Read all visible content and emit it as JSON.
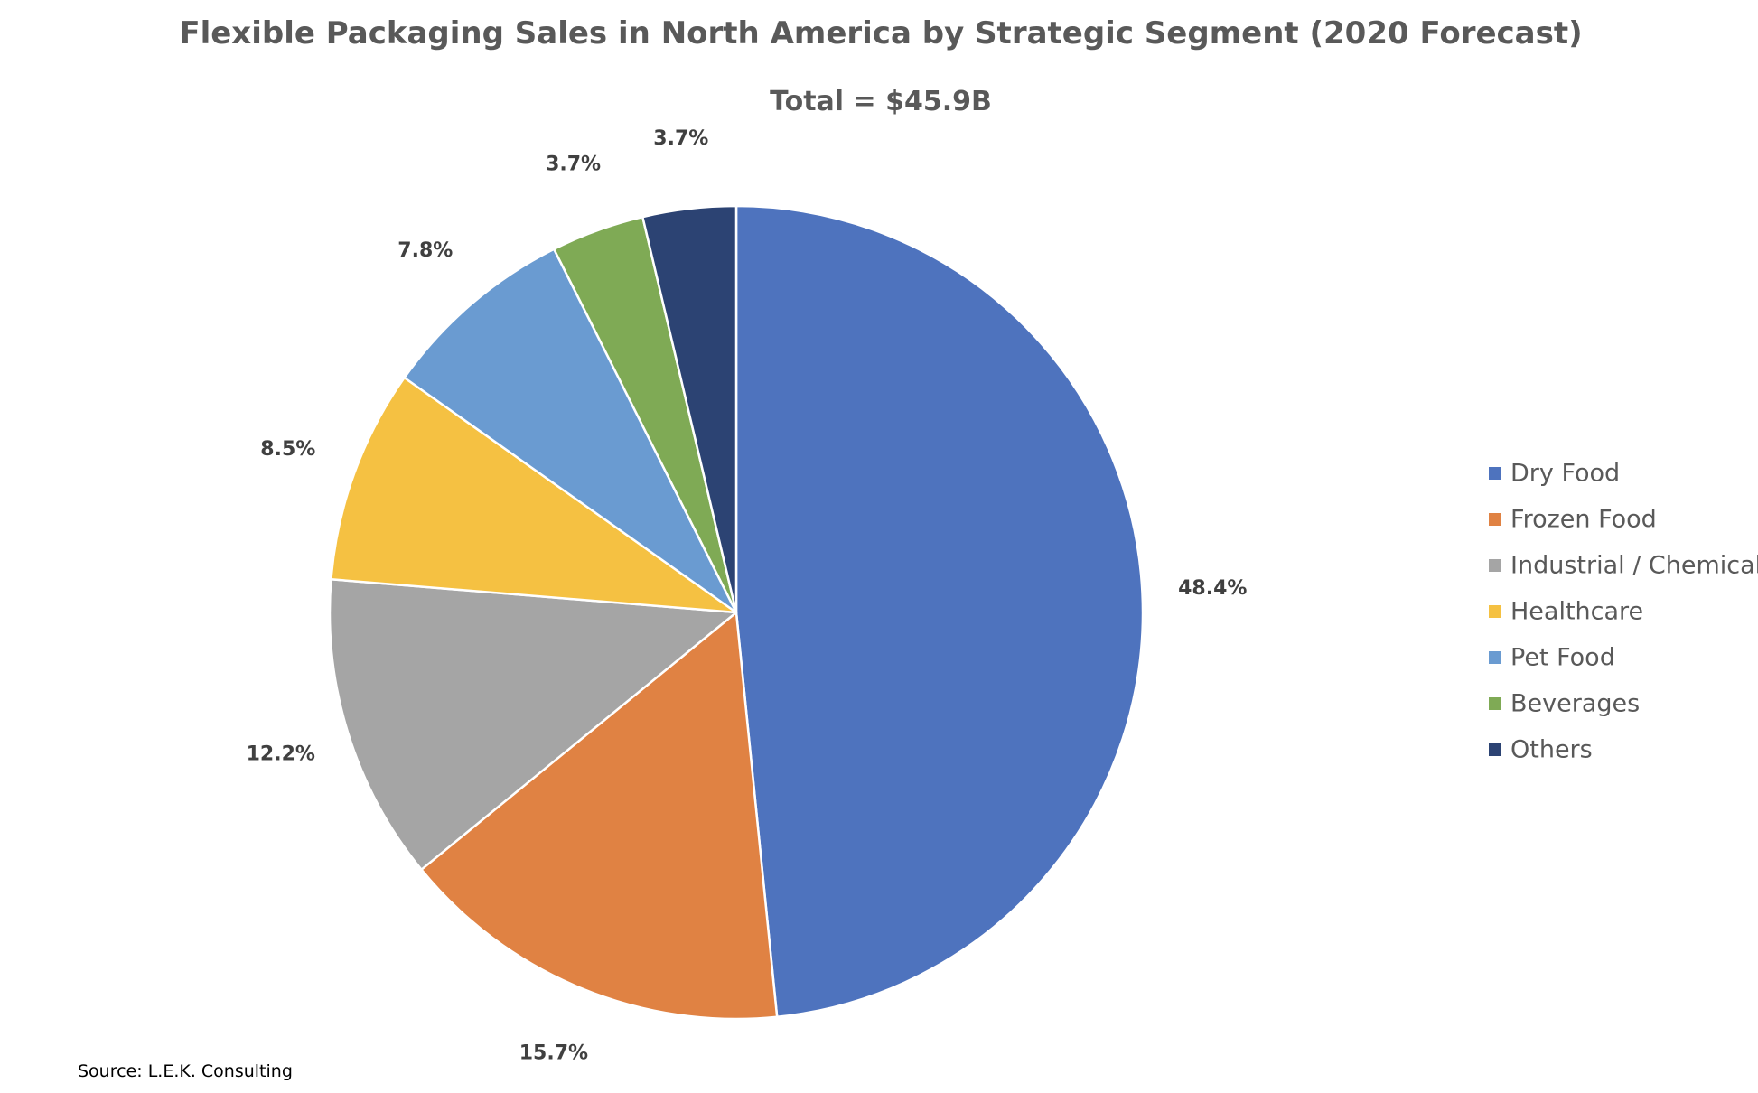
{
  "chart_data": {
    "type": "pie",
    "title": "Flexible Packaging Sales in North America by Strategic Segment (2020 Forecast)",
    "subtitle": "Total = $45.9B",
    "categories": [
      "Dry Food",
      "Frozen Food",
      "Industrial / Chemical",
      "Healthcare",
      "Pet Food",
      "Beverages",
      "Others"
    ],
    "values": [
      48.4,
      15.7,
      12.2,
      8.5,
      7.8,
      3.7,
      3.7
    ],
    "labels": [
      "48.4%",
      "15.7%",
      "12.2%",
      "8.5%",
      "7.8%",
      "3.7%",
      "3.7%"
    ],
    "colors": [
      "#4E73BE",
      "#E08243",
      "#A5A5A5",
      "#F5C142",
      "#6A9BD1",
      "#7FAA55",
      "#2C4373"
    ],
    "legend_position": "right",
    "start_angle": "12 o'clock",
    "direction": "clockwise"
  },
  "source": "Source: L.E.K. Consulting"
}
